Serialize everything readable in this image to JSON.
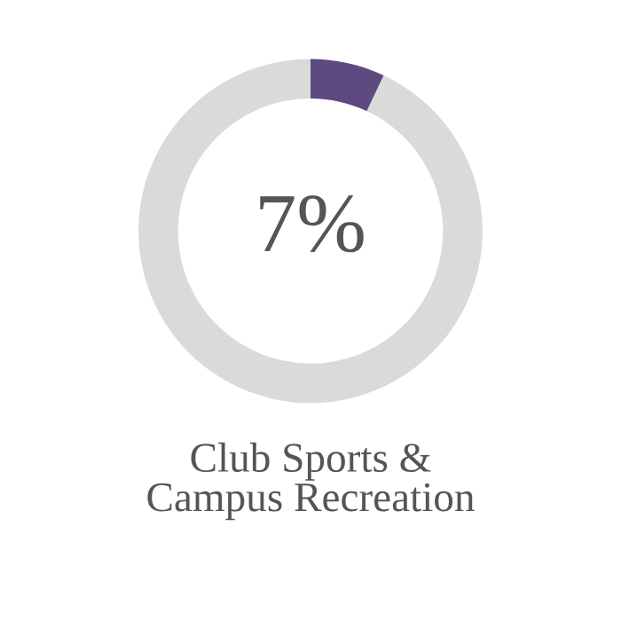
{
  "chart_data": {
    "type": "donut",
    "title": "Club Sports &\nCampus Recreation",
    "categories": [
      null,
      null
    ],
    "values": [
      7,
      93
    ],
    "colors": [
      "#5e4a80",
      "#dadada"
    ],
    "value_labels": [
      "7%",
      null
    ]
  }
}
